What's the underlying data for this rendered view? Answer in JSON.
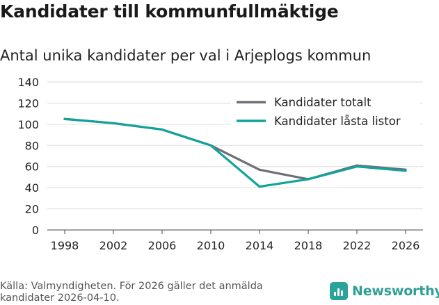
{
  "header": {
    "title": "Kandidater till kommunfullmäktige",
    "subtitle": "Antal unika kandidater per val i Arjeplogs kommun"
  },
  "footer": {
    "source": "Källa: Valmyndigheten. För 2026 gäller det anmälda kandidater 2026-04-10.",
    "brand": "Newsworthy"
  },
  "colors": {
    "total": "#6e6e78",
    "locked": "#11a39a",
    "grid": "#dddddd",
    "brand": "#2aa39a"
  },
  "chart_data": {
    "type": "line",
    "title": "Antal unika kandidater per val i Arjeplogs kommun",
    "x": [
      1998,
      2002,
      2006,
      2010,
      2014,
      2018,
      2022,
      2026
    ],
    "ylim": [
      0,
      140
    ],
    "yticks": [
      0,
      20,
      40,
      60,
      80,
      100,
      120,
      140
    ],
    "xlabel": "",
    "ylabel": "",
    "legend_position": "top-right",
    "series": [
      {
        "name": "Kandidater totalt",
        "color": "#6e6e78",
        "values": [
          105,
          101,
          95,
          80,
          57,
          48,
          61,
          57
        ]
      },
      {
        "name": "Kandidater låsta listor",
        "color": "#11a39a",
        "values": [
          105,
          101,
          95,
          80,
          41,
          48,
          60,
          56
        ]
      }
    ]
  }
}
